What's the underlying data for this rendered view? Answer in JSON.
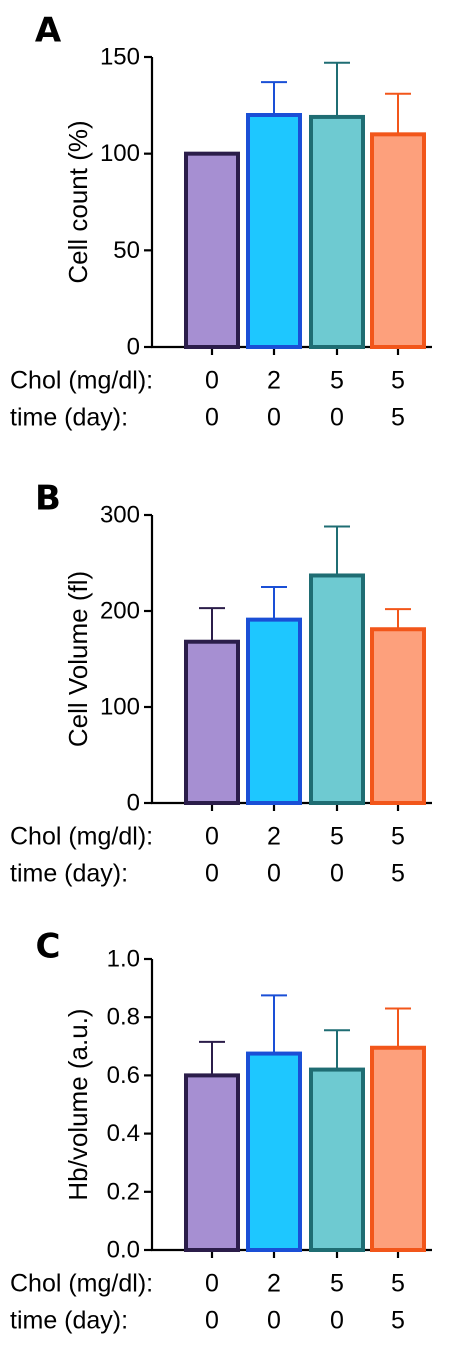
{
  "chart_data": [
    {
      "panel": "A",
      "type": "bar",
      "ylabel": "Cell count (%)",
      "ylim": [
        0,
        150
      ],
      "yticks": [
        0,
        50,
        100,
        150
      ],
      "categories": [
        {
          "chol": "0",
          "time": "0"
        },
        {
          "chol": "2",
          "time": "0"
        },
        {
          "chol": "5",
          "time": "0"
        },
        {
          "chol": "5",
          "time": "5"
        }
      ],
      "values": [
        100,
        120,
        119,
        110
      ],
      "errors": [
        0,
        17,
        28,
        21
      ],
      "row_labels": [
        "Chol (mg/dl):",
        "time (day):"
      ]
    },
    {
      "panel": "B",
      "type": "bar",
      "ylabel": "Cell Volume (fl)",
      "ylim": [
        0,
        300
      ],
      "yticks": [
        0,
        100,
        200,
        300
      ],
      "categories": [
        {
          "chol": "0",
          "time": "0"
        },
        {
          "chol": "2",
          "time": "0"
        },
        {
          "chol": "5",
          "time": "0"
        },
        {
          "chol": "5",
          "time": "5"
        }
      ],
      "values": [
        168,
        191,
        237,
        181
      ],
      "errors": [
        35,
        34,
        51,
        21
      ],
      "row_labels": [
        "Chol (mg/dl):",
        "time (day):"
      ]
    },
    {
      "panel": "C",
      "type": "bar",
      "ylabel": "Hb/volume (a.u.)",
      "ylim": [
        0,
        1.0
      ],
      "yticks": [
        "0.0",
        "0.2",
        "0.4",
        "0.6",
        "0.8",
        "1.0"
      ],
      "categories": [
        {
          "chol": "0",
          "time": "0"
        },
        {
          "chol": "2",
          "time": "0"
        },
        {
          "chol": "5",
          "time": "0"
        },
        {
          "chol": "5",
          "time": "5"
        }
      ],
      "values": [
        0.6,
        0.675,
        0.62,
        0.695
      ],
      "errors": [
        0.115,
        0.2,
        0.135,
        0.135
      ],
      "row_labels": [
        "Chol (mg/dl):",
        "time (day):"
      ]
    }
  ],
  "colors": {
    "fills": [
      "#a68fd2",
      "#1ec7ff",
      "#6ecad1",
      "#fda07c"
    ],
    "edges": [
      "#2b1d4a",
      "#1a4fd6",
      "#1f6d73",
      "#f2561a"
    ],
    "axis": "#000000"
  }
}
